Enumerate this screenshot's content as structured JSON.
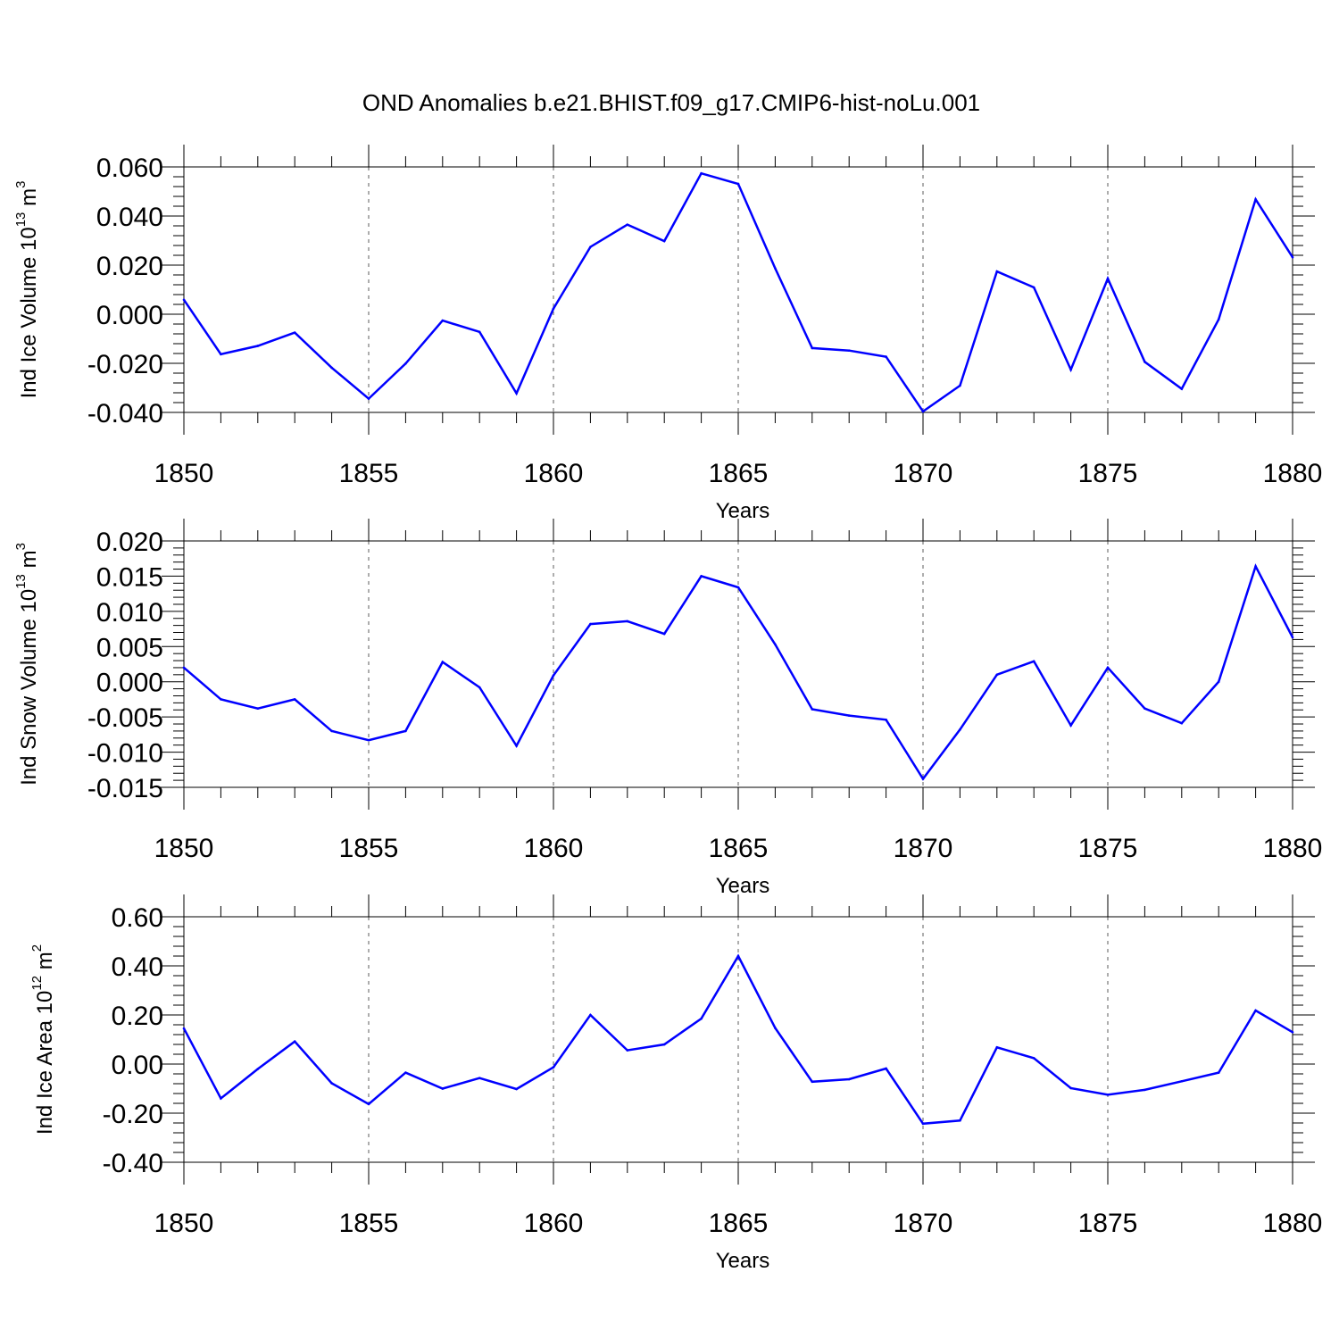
{
  "title": "OND Anomalies b.e21.BHIST.f09_g17.CMIP6-hist-noLu.001",
  "chart_data": [
    {
      "type": "line",
      "id": "ice-volume",
      "ylabel": "Ind Ice Volume 10",
      "ylabel_exp": "13",
      "ylabel_unit": " m",
      "ylabel_unit_exp": "3",
      "xlabel": "Years",
      "xlim": [
        1850,
        1880
      ],
      "ylim": [
        -0.04,
        0.06
      ],
      "x_ticks": [
        1850,
        1855,
        1860,
        1865,
        1870,
        1875,
        1880
      ],
      "x_tick_labels": [
        "1850",
        "1855",
        "1860",
        "1865",
        "1870",
        "1875",
        "1880"
      ],
      "y_ticks": [
        -0.04,
        -0.02,
        0.0,
        0.02,
        0.04,
        0.06
      ],
      "y_tick_labels": [
        "-0.040",
        "-0.020",
        "0.000",
        "0.020",
        "0.040",
        "0.060"
      ],
      "grid_years": [
        1855,
        1860,
        1865,
        1870,
        1875
      ],
      "color": "#0000ff",
      "x": [
        1850,
        1851,
        1852,
        1853,
        1854,
        1855,
        1856,
        1857,
        1858,
        1859,
        1860,
        1861,
        1862,
        1863,
        1864,
        1865,
        1866,
        1867,
        1868,
        1869,
        1870,
        1871,
        1872,
        1873,
        1874,
        1875,
        1876,
        1877,
        1878,
        1879,
        1880
      ],
      "values": [
        0.0059,
        -0.0163,
        -0.0129,
        -0.0075,
        -0.0218,
        -0.0344,
        -0.0201,
        -0.0026,
        -0.0072,
        -0.0322,
        0.0023,
        0.0274,
        0.0365,
        0.0298,
        0.0574,
        0.0531,
        0.0187,
        -0.0138,
        -0.0148,
        -0.0173,
        -0.0396,
        -0.0291,
        0.0174,
        0.0109,
        -0.0226,
        0.0145,
        -0.0194,
        -0.0304,
        -0.0021,
        0.0468,
        0.0232
      ]
    },
    {
      "type": "line",
      "id": "snow-volume",
      "ylabel": "Ind Snow Volume 10",
      "ylabel_exp": "13",
      "ylabel_unit": " m",
      "ylabel_unit_exp": "3",
      "xlabel": "Years",
      "xlim": [
        1850,
        1880
      ],
      "ylim": [
        -0.015,
        0.02
      ],
      "x_ticks": [
        1850,
        1855,
        1860,
        1865,
        1870,
        1875,
        1880
      ],
      "x_tick_labels": [
        "1850",
        "1855",
        "1860",
        "1865",
        "1870",
        "1875",
        "1880"
      ],
      "y_ticks": [
        -0.015,
        -0.01,
        -0.005,
        0.0,
        0.005,
        0.01,
        0.015,
        0.02
      ],
      "y_tick_labels": [
        "-0.015",
        "-0.010",
        "-0.005",
        "0.000",
        "0.005",
        "0.010",
        "0.015",
        "0.020"
      ],
      "grid_years": [
        1855,
        1860,
        1865,
        1870,
        1875
      ],
      "color": "#0000ff",
      "x": [
        1850,
        1851,
        1852,
        1853,
        1854,
        1855,
        1856,
        1857,
        1858,
        1859,
        1860,
        1861,
        1862,
        1863,
        1864,
        1865,
        1866,
        1867,
        1868,
        1869,
        1870,
        1871,
        1872,
        1873,
        1874,
        1875,
        1876,
        1877,
        1878,
        1879,
        1880
      ],
      "values": [
        0.002,
        -0.0025,
        -0.0038,
        -0.0025,
        -0.007,
        -0.0083,
        -0.007,
        0.0028,
        -0.0008,
        -0.0091,
        0.0009,
        0.0082,
        0.0086,
        0.0068,
        0.015,
        0.0134,
        0.0053,
        -0.0039,
        -0.0048,
        -0.0054,
        -0.0138,
        -0.0068,
        0.001,
        0.0029,
        -0.0062,
        0.002,
        -0.0038,
        -0.0059,
        0.0,
        0.0164,
        0.0063
      ]
    },
    {
      "type": "line",
      "id": "ice-area",
      "ylabel": "Ind Ice Area 10",
      "ylabel_exp": "12",
      "ylabel_unit": " m",
      "ylabel_unit_exp": "2",
      "xlabel": "Years",
      "xlim": [
        1850,
        1880
      ],
      "ylim": [
        -0.4,
        0.6
      ],
      "x_ticks": [
        1850,
        1855,
        1860,
        1865,
        1870,
        1875,
        1880
      ],
      "x_tick_labels": [
        "1850",
        "1855",
        "1860",
        "1865",
        "1870",
        "1875",
        "1880"
      ],
      "y_ticks": [
        -0.4,
        -0.2,
        0.0,
        0.2,
        0.4,
        0.6
      ],
      "y_tick_labels": [
        "-0.40",
        "-0.20",
        "0.00",
        "0.20",
        "0.40",
        "0.60"
      ],
      "grid_years": [
        1855,
        1860,
        1865,
        1870,
        1875
      ],
      "color": "#0000ff",
      "x": [
        1850,
        1851,
        1852,
        1853,
        1854,
        1855,
        1856,
        1857,
        1858,
        1859,
        1860,
        1861,
        1862,
        1863,
        1864,
        1865,
        1866,
        1867,
        1868,
        1869,
        1870,
        1871,
        1872,
        1873,
        1874,
        1875,
        1876,
        1877,
        1878,
        1879,
        1880
      ],
      "values": [
        0.145,
        -0.14,
        -0.02,
        0.092,
        -0.078,
        -0.163,
        -0.035,
        -0.1,
        -0.057,
        -0.102,
        -0.013,
        0.2,
        0.056,
        0.08,
        0.185,
        0.44,
        0.147,
        -0.072,
        -0.062,
        -0.018,
        -0.243,
        -0.23,
        0.068,
        0.024,
        -0.098,
        -0.125,
        -0.105,
        -0.07,
        -0.035,
        0.218,
        0.13
      ]
    }
  ]
}
